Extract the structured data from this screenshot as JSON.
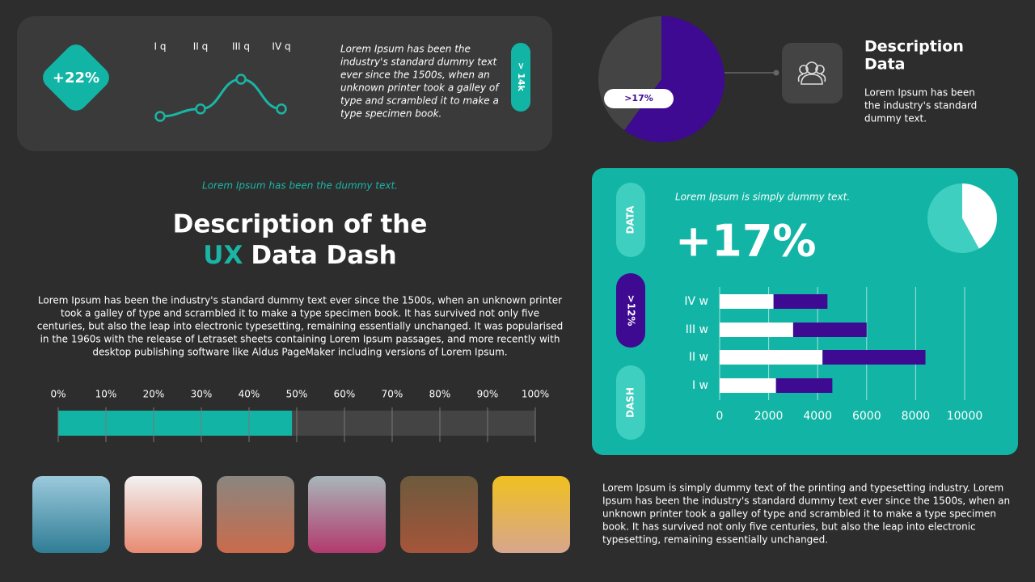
{
  "texts": {
    "top_badge": "+22%",
    "top_note": [
      "Lorem Ipsum has been the",
      "industry's standard dummy text",
      "ever since the 1500s, when an",
      "unknown printer took a galley of",
      "type and scrambled it to make a",
      "type specimen book."
    ],
    "top_pill": "> 14k",
    "description_title": [
      "Description",
      "Data"
    ],
    "description_text": [
      "Lorem Ipsum has been",
      "the industry's standard",
      "dummy text."
    ],
    "kicker": "Lorem Ipsum has been the dummy text.",
    "heading_line1": "Description of the",
    "heading_accent": "UX",
    "heading_rest": "Data Dash",
    "body": [
      "Lorem Ipsum has been the industry's standard dummy text ever since the 1500s, when an unknown printer",
      "took a galley of type and scrambled it to make a type specimen book. It has survived not only five",
      "centuries, but also the leap into electronic typesetting, remaining essentially unchanged. It was popularised",
      "in the 1960s with the release of Letraset sheets containing Lorem Ipsum passages, and more recently with",
      "desktop publishing software like Aldus PageMaker including versions of Lorem Ipsum."
    ],
    "footer": [
      "Lorem Ipsum is simply dummy text of the printing and typesetting industry. Lorem",
      "Ipsum has been the industry's standard dummy text ever since the 1500s, when an",
      "unknown printer took a galley of type and scrambled it to make a type specimen",
      "book. It has survived not only five centuries, but also the leap into electronic",
      "typesetting, remaining essentially unchanged."
    ],
    "panel_note": "Lorem Ipsum is simply dummy text.",
    "panel_big": "+17%",
    "panel_tabs": [
      "DATA",
      ">12%",
      "DASH"
    ]
  },
  "chart_data": [
    {
      "type": "line",
      "categories": [
        "I q",
        "II q",
        "III q",
        "IV q"
      ],
      "values": [
        10,
        12,
        20,
        12
      ],
      "color": "#1ab5a5"
    },
    {
      "type": "pie",
      "values": [
        60,
        40
      ],
      "colors": [
        "#3d0a91",
        "#444444"
      ],
      "annotation": ">17%"
    },
    {
      "type": "progress",
      "values": [
        49
      ],
      "color": "#12b5a5",
      "track_color": "#444444",
      "xlim": [
        0,
        100
      ],
      "xticks": [
        {
          "value": 0,
          "label": "0%"
        },
        {
          "value": 10,
          "label": "10%"
        },
        {
          "value": 20,
          "label": "20%"
        },
        {
          "value": 30,
          "label": "30%"
        },
        {
          "value": 40,
          "label": "40%"
        },
        {
          "value": 50,
          "label": "50%"
        },
        {
          "value": 60,
          "label": "60%"
        },
        {
          "value": 70,
          "label": "70%"
        },
        {
          "value": 80,
          "label": "80%"
        },
        {
          "value": 90,
          "label": "90%"
        },
        {
          "value": 100,
          "label": "100%"
        }
      ]
    },
    {
      "type": "pie",
      "values": [
        42,
        58
      ],
      "colors": [
        "#ffffff",
        "#3fcfc0"
      ]
    },
    {
      "type": "stacked_bar",
      "categories": [
        "IV w",
        "III w",
        "II w",
        "I w"
      ],
      "series": [
        {
          "color": "#ffffff",
          "values": [
            2200,
            3000,
            4200,
            2300
          ]
        },
        {
          "color": "#3d0a91",
          "values": [
            2200,
            3000,
            4200,
            2300
          ]
        }
      ],
      "xlim": [
        0,
        10000
      ],
      "xticks": [
        0,
        2000,
        4000,
        6000,
        8000,
        10000
      ],
      "grid": true
    }
  ]
}
